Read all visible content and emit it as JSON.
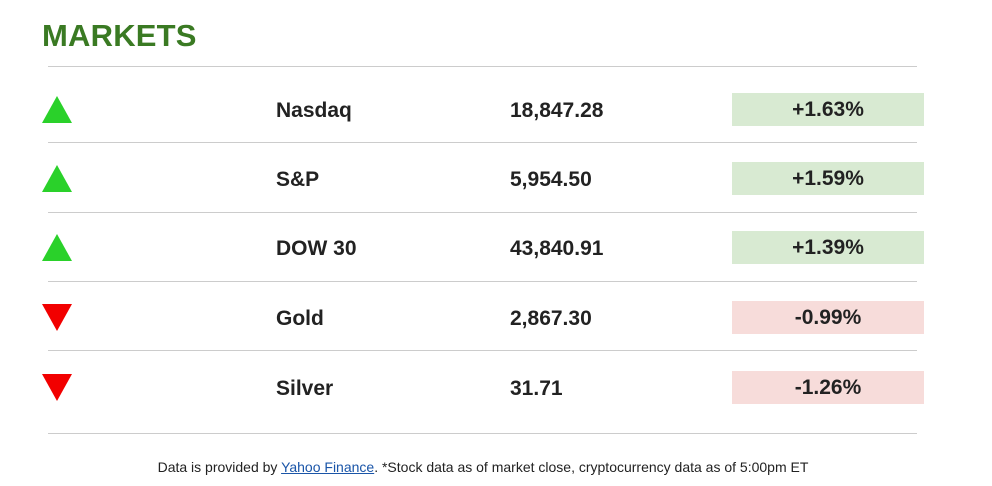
{
  "header": {
    "title": "MARKETS"
  },
  "markets": [
    {
      "name": "Nasdaq",
      "value": "18,847.28",
      "change": "+1.63%",
      "direction": "up",
      "icon": "triangle-up-icon"
    },
    {
      "name": "S&P",
      "value": "5,954.50",
      "change": "+1.59%",
      "direction": "up",
      "icon": "triangle-up-icon"
    },
    {
      "name": "DOW 30",
      "value": "43,840.91",
      "change": "+1.39%",
      "direction": "up",
      "icon": "triangle-up-icon"
    },
    {
      "name": "Gold",
      "value": "2,867.30",
      "change": "-0.99%",
      "direction": "down",
      "icon": "triangle-down-icon"
    },
    {
      "name": "Silver",
      "value": "31.71",
      "change": "-1.26%",
      "direction": "down",
      "icon": "triangle-down-icon"
    }
  ],
  "colors": {
    "title": "#3a7a23",
    "up_arrow": "#2ad12a",
    "down_arrow": "#f20000",
    "positive_bg": "#d8ead2",
    "negative_bg": "#f7dcda",
    "link": "#1a55a8"
  },
  "footer": {
    "prefix": "Data is provided by ",
    "link_text": "Yahoo Finance",
    "suffix": ". *Stock data as of market close, cryptocurrency data as of 5:00pm ET"
  }
}
